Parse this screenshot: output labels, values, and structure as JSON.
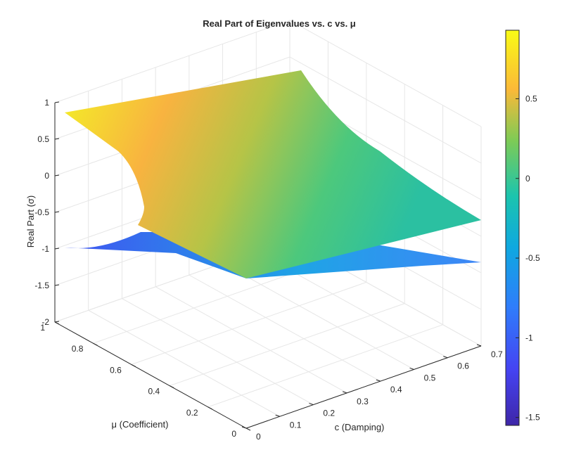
{
  "chart_data": {
    "type": "surface",
    "title": "Real Part of Eigenvalues vs. c vs. μ",
    "xlabel": "c (Damping)",
    "ylabel": "μ (Coefficient)",
    "zlabel": "Real Part (σ)",
    "xlim": [
      0,
      0.7
    ],
    "ylim": [
      0,
      1
    ],
    "zlim": [
      -2,
      1
    ],
    "xticks": [
      "0",
      "0.1",
      "0.2",
      "0.3",
      "0.4",
      "0.5",
      "0.6",
      "0.7"
    ],
    "yticks": [
      "0",
      "0.2",
      "0.4",
      "0.6",
      "0.8",
      "1"
    ],
    "zticks": [
      "-2",
      "-1.5",
      "-1",
      "-0.5",
      "0",
      "0.5",
      "1"
    ],
    "colorbar": {
      "range": [
        -1.55,
        0.93
      ],
      "ticks": [
        "-1.5",
        "-1",
        "-0.5",
        "0",
        "0.5"
      ],
      "colormap": "parula"
    },
    "grid": true,
    "series": [
      {
        "surface": "upper",
        "corners": [
          {
            "c": 0,
            "mu": 0,
            "sigma": -1.0
          },
          {
            "c": 0.7,
            "mu": 0,
            "sigma": -0.55
          },
          {
            "c": 0.7,
            "mu": 1,
            "sigma": 0.48
          },
          {
            "c": 0,
            "mu": 1,
            "sigma": 0.93
          }
        ]
      },
      {
        "surface": "lower",
        "corners": [
          {
            "c": 0,
            "mu": 0,
            "sigma": -1.0
          },
          {
            "c": 0.7,
            "mu": 0,
            "sigma": -1.35
          },
          {
            "c": 0.7,
            "mu": 1,
            "sigma": -0.55
          },
          {
            "c": 0,
            "mu": 1,
            "sigma": -0.93
          }
        ]
      }
    ]
  }
}
